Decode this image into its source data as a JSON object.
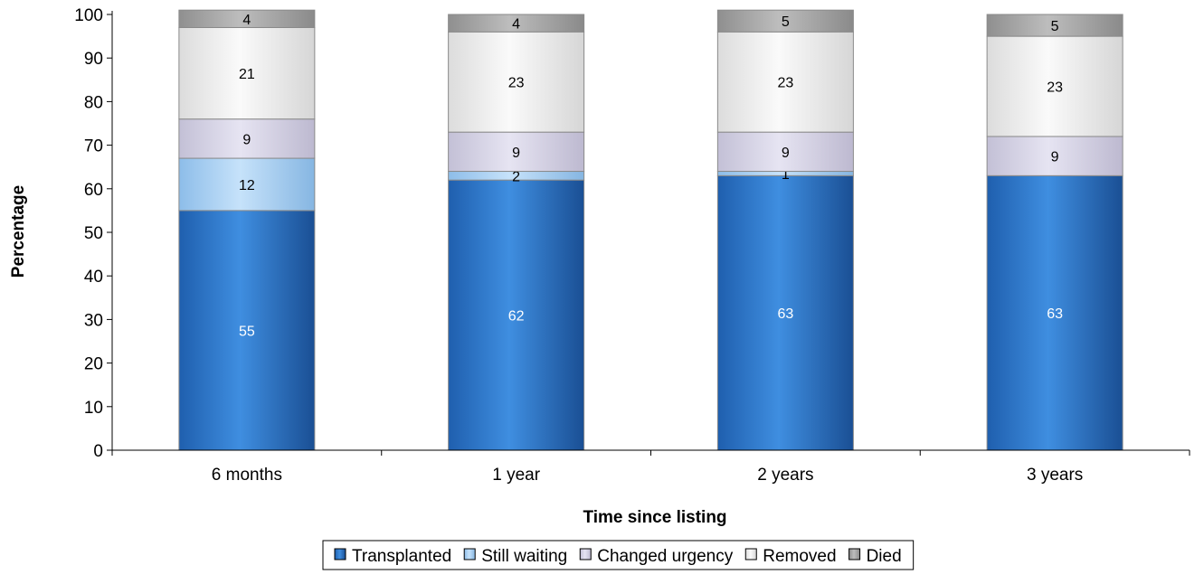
{
  "chart_data": {
    "type": "bar",
    "stacked": true,
    "title": "",
    "xlabel": "Time since listing",
    "ylabel": "Percentage",
    "ylim": [
      0,
      100
    ],
    "yticks": [
      0,
      10,
      20,
      30,
      40,
      50,
      60,
      70,
      80,
      90,
      100
    ],
    "categories": [
      "6 months",
      "1 year",
      "2 years",
      "3 years"
    ],
    "series": [
      {
        "name": "Transplanted",
        "values": [
          55,
          62,
          63,
          63
        ],
        "color": "#2f7ad1",
        "label_color": "#ffffff"
      },
      {
        "name": "Still waiting",
        "values": [
          12,
          2,
          1,
          0
        ],
        "color": "#a9d0f2",
        "label_color": "#000000"
      },
      {
        "name": "Changed urgency",
        "values": [
          9,
          9,
          9,
          9
        ],
        "color": "#d7d5e6",
        "label_color": "#000000"
      },
      {
        "name": "Removed",
        "values": [
          21,
          23,
          23,
          23
        ],
        "color": "#efefef",
        "label_color": "#000000"
      },
      {
        "name": "Died",
        "values": [
          4,
          4,
          5,
          5
        ],
        "color": "#a6a6a6",
        "label_color": "#000000"
      }
    ],
    "legend_position": "bottom",
    "grid": false
  }
}
